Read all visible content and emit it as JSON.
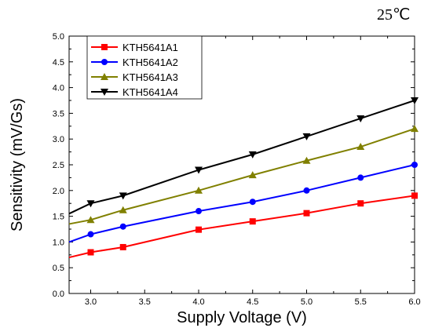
{
  "chart_data": {
    "type": "line",
    "annotation": "25℃",
    "xlabel": "Supply Voltage (V)",
    "ylabel": "Sensitivity (mV/Gs)",
    "xlim": [
      2.8,
      6.0
    ],
    "ylim": [
      0.0,
      5.0
    ],
    "xticks": [
      3.0,
      3.5,
      4.0,
      4.5,
      5.0,
      5.5,
      6.0
    ],
    "xtick_labels": [
      "3.0",
      "3.5",
      "4.0",
      "4.5",
      "5.0",
      "5.5",
      "6.0"
    ],
    "yticks": [
      0.0,
      0.5,
      1.0,
      1.5,
      2.0,
      2.5,
      3.0,
      3.5,
      4.0,
      4.5,
      5.0
    ],
    "ytick_labels": [
      "0.0",
      "0.5",
      "1.0",
      "1.5",
      "2.0",
      "2.5",
      "3.0",
      "3.5",
      "4.0",
      "4.5",
      "5.0"
    ],
    "grid": false,
    "legend_position": "top-left",
    "x": [
      2.8,
      3.0,
      3.3,
      4.0,
      4.5,
      5.0,
      5.5,
      6.0
    ],
    "series": [
      {
        "name": "KTH5641A1",
        "color": "#ff0000",
        "marker": "square",
        "values": [
          0.7,
          0.8,
          0.9,
          1.24,
          1.4,
          1.56,
          1.75,
          1.9
        ]
      },
      {
        "name": "KTH5641A2",
        "color": "#0000ff",
        "marker": "circle",
        "values": [
          1.0,
          1.15,
          1.3,
          1.6,
          1.78,
          2.0,
          2.25,
          2.5
        ]
      },
      {
        "name": "KTH5641A3",
        "color": "#808000",
        "marker": "triangle-up",
        "values": [
          1.35,
          1.43,
          1.62,
          2.0,
          2.3,
          2.58,
          2.85,
          3.2
        ]
      },
      {
        "name": "KTH5641A4",
        "color": "#000000",
        "marker": "triangle-down",
        "values": [
          1.55,
          1.75,
          1.9,
          2.4,
          2.7,
          3.05,
          3.4,
          3.75
        ]
      }
    ]
  }
}
